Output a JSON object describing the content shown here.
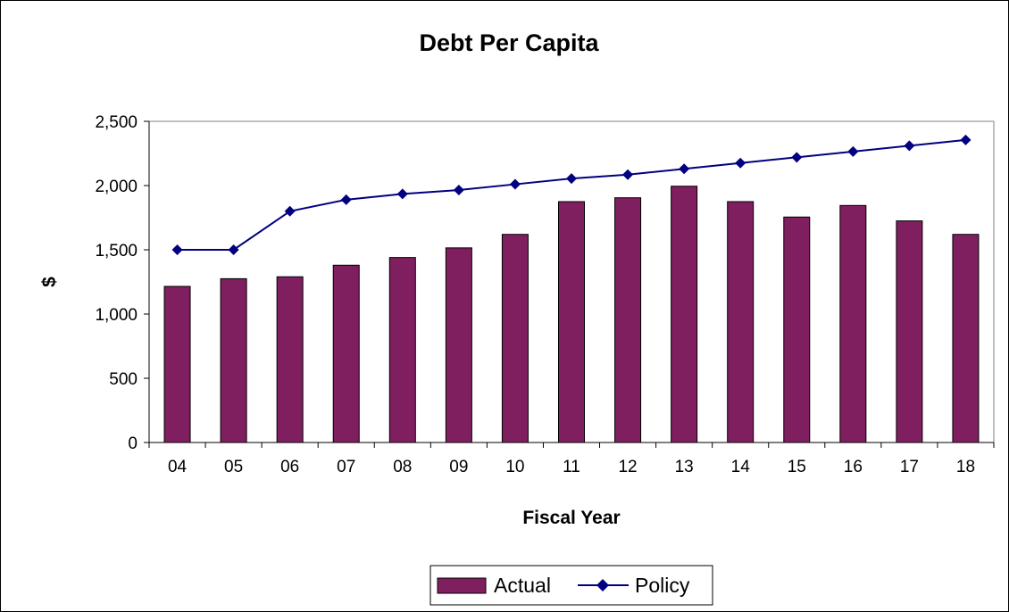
{
  "chart_data": {
    "type": "bar",
    "title": "Debt Per Capita",
    "xlabel": "Fiscal Year",
    "ylabel": "$",
    "ylim": [
      0,
      2500
    ],
    "yticks": [
      0,
      500,
      1000,
      1500,
      2000,
      2500
    ],
    "ytick_labels": [
      "0",
      "500",
      "1,000",
      "1,500",
      "2,000",
      "2,500"
    ],
    "categories": [
      "04",
      "05",
      "06",
      "07",
      "08",
      "09",
      "10",
      "11",
      "12",
      "13",
      "14",
      "15",
      "16",
      "17",
      "18"
    ],
    "series": [
      {
        "name": "Actual",
        "type": "bar",
        "color": "#7f1f5f",
        "values": [
          1215,
          1275,
          1290,
          1380,
          1440,
          1515,
          1620,
          1875,
          1905,
          1995,
          1875,
          1755,
          1845,
          1725,
          1620
        ]
      },
      {
        "name": "Policy",
        "type": "line",
        "color": "#000080",
        "marker": "diamond",
        "values": [
          1500,
          1500,
          1800,
          1890,
          1935,
          1965,
          2010,
          2055,
          2085,
          2130,
          2175,
          2220,
          2265,
          2310,
          2355
        ]
      }
    ],
    "grid": false,
    "legend_position": "bottom-center"
  }
}
